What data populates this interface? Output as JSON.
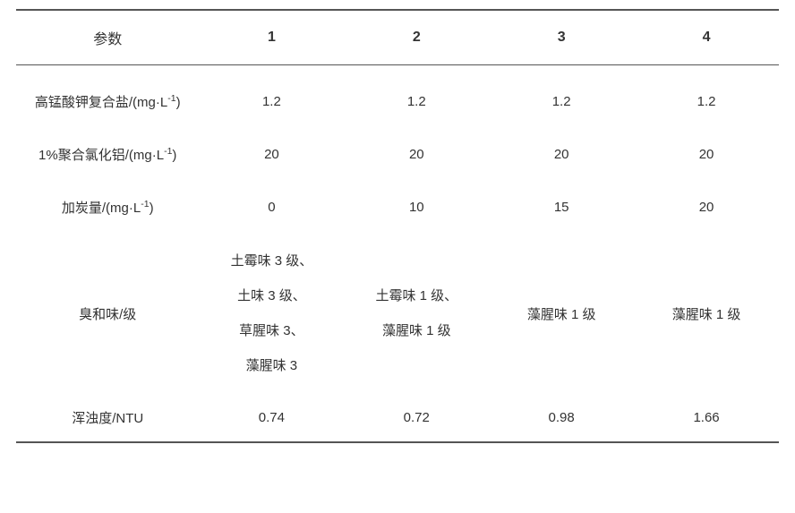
{
  "table": {
    "header_param": "参数",
    "columns": [
      "1",
      "2",
      "3",
      "4"
    ],
    "rows": [
      {
        "label_html": "高锰酸钾复合盐/(mg·L<sup>-1</sup>)",
        "cells": [
          "1.2",
          "1.2",
          "1.2",
          "1.2"
        ]
      },
      {
        "label_html": "1%聚合氯化铝/(mg·L<sup>-1</sup>)",
        "cells": [
          "20",
          "20",
          "20",
          "20"
        ]
      },
      {
        "label_html": "加炭量/(mg·L<sup>-1</sup>)",
        "cells": [
          "0",
          "10",
          "15",
          "20"
        ]
      },
      {
        "label_html": "臭和味/级",
        "cells_html": [
          "土霉味 3 级、<br>土味 3 级、<br>草腥味 3、<br>藻腥味 3",
          "土霉味 1 级、<br>藻腥味 1 级",
          "藻腥味 1 级",
          "藻腥味 1 级"
        ]
      },
      {
        "label_html": "浑浊度/NTU",
        "cells": [
          "0.74",
          "0.72",
          "0.98",
          "1.66"
        ]
      }
    ]
  },
  "style": {
    "border_color": "#555555",
    "text_color": "#333333",
    "background_color": "#ffffff",
    "font_size_header": 16,
    "font_size_body": 15
  }
}
